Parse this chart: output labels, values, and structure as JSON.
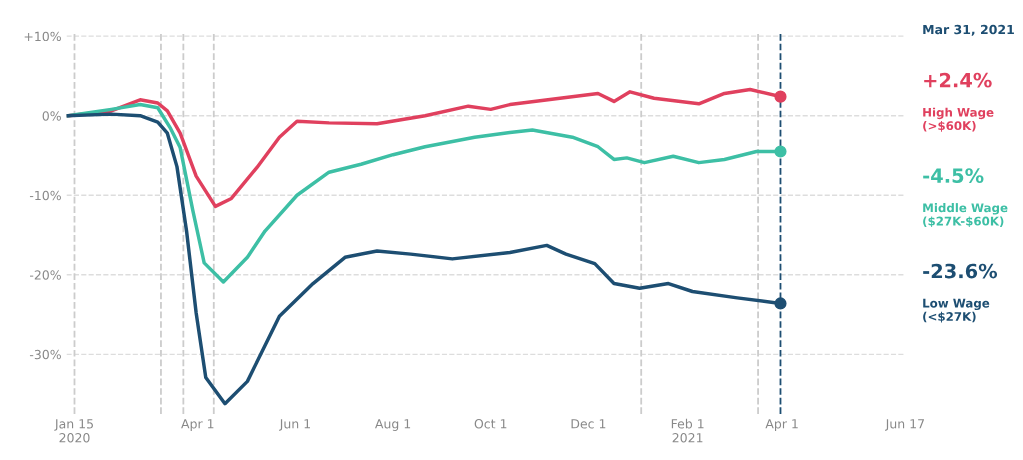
{
  "chart_data": {
    "type": "line",
    "xlim": [
      "2020-01-10",
      "2021-06-17"
    ],
    "xticks": [
      {
        "value": "2020-01-15",
        "label": "Jan 15\n2020"
      },
      {
        "value": "2020-04-01",
        "label": "Apr 1"
      },
      {
        "value": "2020-06-01",
        "label": "Jun 1"
      },
      {
        "value": "2020-08-01",
        "label": "Aug 1"
      },
      {
        "value": "2020-10-01",
        "label": "Oct 1"
      },
      {
        "value": "2020-12-01",
        "label": "Dec 1"
      },
      {
        "value": "2021-02-01",
        "label": "Feb 1\n2021"
      },
      {
        "value": "2021-04-01",
        "label": "Apr 1"
      },
      {
        "value": "2021-06-17",
        "label": "Jun 17"
      }
    ],
    "ylim": [
      -37.5,
      10.5
    ],
    "yticks": [
      {
        "value": 10,
        "label": "+10%"
      },
      {
        "value": 0,
        "label": "0%"
      },
      {
        "value": -10,
        "label": "-10%"
      },
      {
        "value": -20,
        "label": "-20%"
      },
      {
        "value": -30,
        "label": "-30%"
      }
    ],
    "grid": "y",
    "legend": false,
    "marker": "none",
    "line_style": "solid",
    "series": [
      {
        "name": "High Wage\n(>$60K)",
        "color": "#e0405e",
        "x": [
          "2020-01-11",
          "2020-02-07",
          "2020-02-25",
          "2020-03-07",
          "2020-03-13",
          "2020-03-21",
          "2020-03-31",
          "2020-04-12",
          "2020-04-22",
          "2020-05-08",
          "2020-05-22",
          "2020-06-02",
          "2020-06-22",
          "2020-07-22",
          "2020-08-21",
          "2020-09-17",
          "2020-10-01",
          "2020-10-13",
          "2020-12-07",
          "2020-12-17",
          "2020-12-27",
          "2021-01-11",
          "2021-02-08",
          "2021-02-24",
          "2021-03-12",
          "2021-03-31"
        ],
        "values": [
          0,
          0.6,
          2.0,
          1.6,
          0.6,
          -2.2,
          -7.6,
          -11.4,
          -10.4,
          -6.5,
          -2.7,
          -0.7,
          -0.9,
          -1.0,
          0,
          1.2,
          0.8,
          1.4,
          2.8,
          1.8,
          3.0,
          2.2,
          1.5,
          2.8,
          3.3,
          2.4
        ]
      },
      {
        "name": "Middle Wage\n($27K-$60K)",
        "color": "#3dbfa5",
        "x": [
          "2020-01-11",
          "2020-02-07",
          "2020-02-25",
          "2020-03-07",
          "2020-03-15",
          "2020-03-21",
          "2020-03-29",
          "2020-04-05",
          "2020-04-17",
          "2020-05-02",
          "2020-05-13",
          "2020-06-02",
          "2020-06-22",
          "2020-07-12",
          "2020-08-01",
          "2020-08-21",
          "2020-09-21",
          "2020-10-13",
          "2020-10-27",
          "2020-11-21",
          "2020-12-07",
          "2020-12-17",
          "2020-12-25",
          "2021-01-05",
          "2021-01-23",
          "2021-02-08",
          "2021-02-24",
          "2021-03-16",
          "2021-03-31"
        ],
        "values": [
          0,
          0.8,
          1.4,
          1.0,
          -1.6,
          -4,
          -12,
          -18.5,
          -20.9,
          -17.8,
          -14.5,
          -10,
          -7.1,
          -6.1,
          -4.9,
          -3.9,
          -2.7,
          -2.1,
          -1.8,
          -2.7,
          -3.9,
          -5.5,
          -5.3,
          -5.9,
          -5.1,
          -5.9,
          -5.5,
          -4.5,
          -4.5
        ]
      },
      {
        "name": "Low Wage\n(<$27K)",
        "color": "#1d4e72",
        "x": [
          "2020-01-11",
          "2020-02-07",
          "2020-02-25",
          "2020-03-07",
          "2020-03-13",
          "2020-03-19",
          "2020-03-25",
          "2020-03-31",
          "2020-04-06",
          "2020-04-18",
          "2020-05-02",
          "2020-05-22",
          "2020-06-12",
          "2020-07-02",
          "2020-07-22",
          "2020-08-12",
          "2020-09-07",
          "2020-10-13",
          "2020-11-05",
          "2020-11-17",
          "2020-12-05",
          "2020-12-17",
          "2021-01-02",
          "2021-01-20",
          "2021-02-04",
          "2021-03-04",
          "2021-03-31"
        ],
        "values": [
          0,
          0.2,
          0,
          -0.8,
          -2.2,
          -6.4,
          -14.5,
          -24.8,
          -32.9,
          -36.2,
          -33.4,
          -25.2,
          -21.1,
          -17.8,
          -17,
          -17.4,
          -18,
          -17.2,
          -16.3,
          -17.4,
          -18.6,
          -21.1,
          -21.7,
          -21.1,
          -22.1,
          -22.9,
          -23.6
        ]
      }
    ],
    "ref_lines": [
      {
        "axis": "x",
        "value": "2020-01-15",
        "color": "#cccccc",
        "line_style": "dashed"
      },
      {
        "axis": "x",
        "value": "2020-03-09",
        "color": "#cccccc",
        "line_style": "dashed"
      },
      {
        "axis": "x",
        "value": "2020-03-23",
        "color": "#cccccc",
        "line_style": "dashed"
      },
      {
        "axis": "x",
        "value": "2020-04-11",
        "color": "#cccccc",
        "line_style": "dashed"
      },
      {
        "axis": "x",
        "value": "2021-01-03",
        "color": "#cccccc",
        "line_style": "dashed"
      },
      {
        "axis": "x",
        "value": "2021-03-17",
        "color": "#cccccc",
        "line_style": "dashed"
      },
      {
        "axis": "x",
        "value": "2021-03-31",
        "label": "Mar 31, 2021",
        "color": "#1d4e72",
        "line_style": "dashed"
      }
    ],
    "annotations": [
      "+2.4%",
      "-4.5%",
      "-23.6%"
    ]
  }
}
